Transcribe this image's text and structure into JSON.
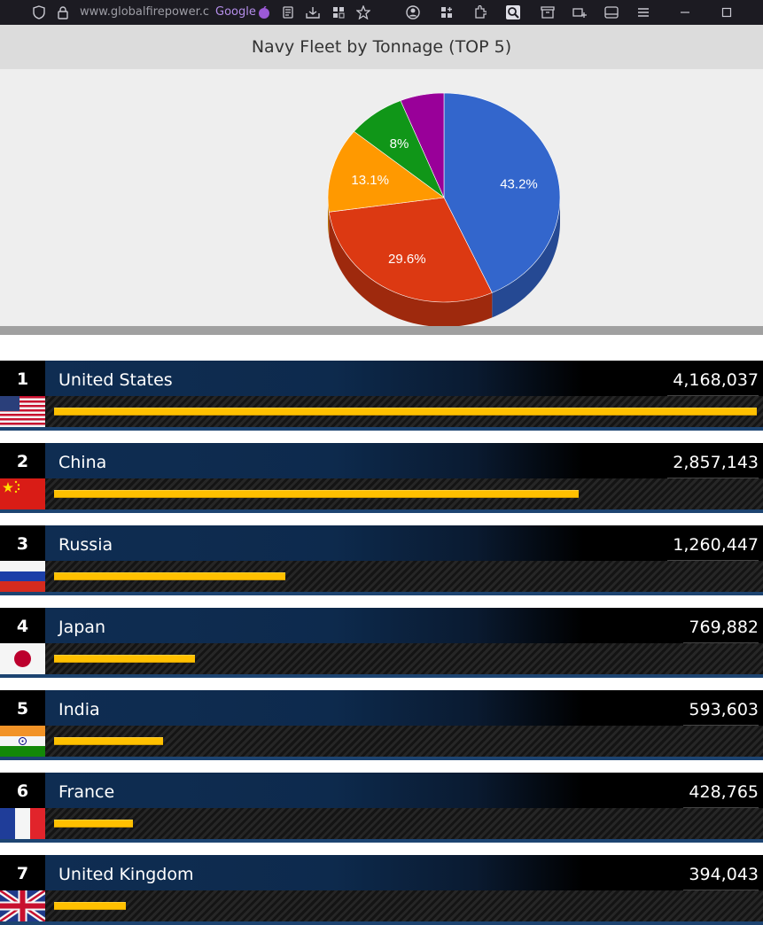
{
  "browser": {
    "url": "www.globalfirepower.co",
    "search_engine": "Google"
  },
  "chart": {
    "title": "Navy Fleet by Tonnage (TOP 5)"
  },
  "chart_data": {
    "type": "pie",
    "title": "Navy Fleet by Tonnage (TOP 5)",
    "slices": [
      {
        "label": "43.2%",
        "value": 43.2,
        "color": "#3366cc"
      },
      {
        "label": "29.6%",
        "value": 29.6,
        "color": "#dc3912"
      },
      {
        "label": "13.1%",
        "value": 13.1,
        "color": "#ff9900"
      },
      {
        "label": "8%",
        "value": 8.0,
        "color": "#109618"
      },
      {
        "label": "",
        "value": 6.1,
        "color": "#990099"
      }
    ]
  },
  "rankings": [
    {
      "rank": "1",
      "country": "United States",
      "value": "4,168,037",
      "bar_fraction": 1.0,
      "flag": "us-flag"
    },
    {
      "rank": "2",
      "country": "China",
      "value": "2,857,143",
      "bar_fraction": 0.746,
      "flag": "cn-flag"
    },
    {
      "rank": "3",
      "country": "Russia",
      "value": "1,260,447",
      "bar_fraction": 0.329,
      "flag": "ru-flag"
    },
    {
      "rank": "4",
      "country": "Japan",
      "value": "769,882",
      "bar_fraction": 0.2,
      "flag": "jp-flag"
    },
    {
      "rank": "5",
      "country": "India",
      "value": "593,603",
      "bar_fraction": 0.155,
      "flag": "in-flag"
    },
    {
      "rank": "6",
      "country": "France",
      "value": "428,765",
      "bar_fraction": 0.112,
      "flag": "fr-flag"
    },
    {
      "rank": "7",
      "country": "United Kingdom",
      "value": "394,043",
      "bar_fraction": 0.102,
      "flag": "uk-flag"
    }
  ],
  "colors": {
    "bar_fill": "#ffc000",
    "row_header_blue": "#0f2d52",
    "row_underline": "#1d4471"
  }
}
